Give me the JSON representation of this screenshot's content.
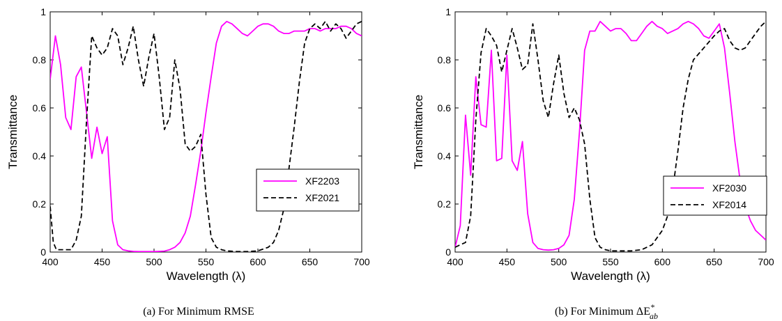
{
  "chart_data": [
    {
      "type": "line",
      "caption_prefix": "(a)  For Minimum RMSE",
      "caption_sub": "",
      "xlabel": "Wavelength (λ)",
      "ylabel": "Transmittance",
      "xlim": [
        400,
        700
      ],
      "ylim": [
        0,
        1
      ],
      "xticks": [
        400,
        450,
        500,
        550,
        600,
        650,
        700
      ],
      "yticks": [
        0,
        0.2,
        0.4,
        0.6,
        0.8,
        1
      ],
      "ytick_labels": [
        "0",
        "0.2",
        "0.4",
        "0.6",
        "0.8",
        "1"
      ],
      "legend_position": "center-right",
      "series": [
        {
          "name": "XF2203",
          "color": "#ff00ff",
          "dash": "solid",
          "x": [
            400,
            405,
            410,
            415,
            420,
            425,
            430,
            435,
            440,
            445,
            450,
            455,
            460,
            465,
            470,
            475,
            480,
            485,
            490,
            495,
            500,
            505,
            510,
            515,
            520,
            525,
            530,
            535,
            540,
            545,
            550,
            555,
            560,
            565,
            570,
            575,
            580,
            585,
            590,
            595,
            600,
            605,
            610,
            615,
            620,
            625,
            630,
            635,
            640,
            645,
            650,
            655,
            660,
            665,
            670,
            675,
            680,
            685,
            690,
            695,
            700
          ],
          "y": [
            0.72,
            0.9,
            0.78,
            0.56,
            0.51,
            0.73,
            0.77,
            0.58,
            0.39,
            0.52,
            0.41,
            0.48,
            0.13,
            0.03,
            0.01,
            0.005,
            0.003,
            0.002,
            0.002,
            0.002,
            0.002,
            0.003,
            0.004,
            0.01,
            0.02,
            0.04,
            0.08,
            0.15,
            0.28,
            0.42,
            0.58,
            0.73,
            0.87,
            0.94,
            0.96,
            0.95,
            0.93,
            0.91,
            0.9,
            0.92,
            0.94,
            0.95,
            0.95,
            0.94,
            0.92,
            0.91,
            0.91,
            0.92,
            0.92,
            0.92,
            0.93,
            0.93,
            0.92,
            0.93,
            0.93,
            0.93,
            0.94,
            0.94,
            0.93,
            0.91,
            0.9
          ]
        },
        {
          "name": "XF2021",
          "color": "#000000",
          "dash": "dashed",
          "x": [
            400,
            403,
            406,
            410,
            415,
            420,
            425,
            430,
            435,
            440,
            445,
            450,
            455,
            460,
            465,
            470,
            475,
            480,
            485,
            490,
            495,
            500,
            505,
            510,
            515,
            520,
            525,
            530,
            535,
            540,
            545,
            550,
            555,
            560,
            565,
            570,
            580,
            590,
            600,
            610,
            615,
            620,
            625,
            630,
            635,
            640,
            645,
            650,
            655,
            660,
            665,
            670,
            675,
            680,
            685,
            690,
            695,
            700
          ],
          "y": [
            0.19,
            0.04,
            0.01,
            0.01,
            0.01,
            0.01,
            0.05,
            0.15,
            0.55,
            0.9,
            0.85,
            0.82,
            0.85,
            0.93,
            0.9,
            0.78,
            0.85,
            0.94,
            0.8,
            0.69,
            0.81,
            0.91,
            0.73,
            0.51,
            0.56,
            0.8,
            0.68,
            0.45,
            0.42,
            0.44,
            0.49,
            0.24,
            0.06,
            0.02,
            0.01,
            0.005,
            0.002,
            0.002,
            0.005,
            0.02,
            0.04,
            0.09,
            0.18,
            0.35,
            0.52,
            0.71,
            0.87,
            0.93,
            0.95,
            0.93,
            0.96,
            0.92,
            0.95,
            0.93,
            0.89,
            0.92,
            0.95,
            0.96
          ]
        }
      ]
    },
    {
      "type": "line",
      "caption_prefix": "(b)  For Minimum ΔE",
      "caption_sub": "ab",
      "caption_sup": "*",
      "xlabel": "Wavelength (λ)",
      "ylabel": "Transmittance",
      "xlim": [
        400,
        700
      ],
      "ylim": [
        0,
        1
      ],
      "xticks": [
        400,
        450,
        500,
        550,
        600,
        650,
        700
      ],
      "yticks": [
        0,
        0.2,
        0.4,
        0.6,
        0.8,
        1
      ],
      "ytick_labels": [
        "0",
        "0.2",
        "0.4",
        "0.6",
        "0.8",
        "1"
      ],
      "legend_position": "center-right",
      "series": [
        {
          "name": "XF2030",
          "color": "#ff00ff",
          "dash": "solid",
          "x": [
            400,
            405,
            410,
            415,
            420,
            425,
            430,
            435,
            440,
            445,
            450,
            455,
            460,
            465,
            470,
            475,
            480,
            485,
            490,
            495,
            500,
            505,
            510,
            515,
            520,
            525,
            530,
            535,
            540,
            545,
            550,
            555,
            560,
            565,
            570,
            575,
            580,
            585,
            590,
            595,
            600,
            605,
            610,
            615,
            620,
            625,
            630,
            635,
            640,
            645,
            650,
            655,
            660,
            665,
            670,
            675,
            680,
            685,
            690,
            695,
            700
          ],
          "y": [
            0.02,
            0.11,
            0.57,
            0.32,
            0.73,
            0.53,
            0.52,
            0.84,
            0.38,
            0.39,
            0.82,
            0.38,
            0.34,
            0.46,
            0.16,
            0.04,
            0.015,
            0.01,
            0.008,
            0.01,
            0.015,
            0.03,
            0.07,
            0.22,
            0.5,
            0.84,
            0.92,
            0.92,
            0.96,
            0.94,
            0.92,
            0.93,
            0.93,
            0.91,
            0.88,
            0.88,
            0.91,
            0.94,
            0.96,
            0.94,
            0.93,
            0.91,
            0.92,
            0.93,
            0.95,
            0.96,
            0.95,
            0.93,
            0.9,
            0.89,
            0.92,
            0.95,
            0.85,
            0.66,
            0.46,
            0.3,
            0.19,
            0.13,
            0.09,
            0.07,
            0.05
          ]
        },
        {
          "name": "XF2014",
          "color": "#000000",
          "dash": "dashed",
          "x": [
            400,
            405,
            410,
            415,
            420,
            425,
            430,
            435,
            440,
            445,
            450,
            455,
            460,
            465,
            470,
            475,
            480,
            485,
            490,
            495,
            500,
            505,
            510,
            515,
            520,
            525,
            530,
            535,
            540,
            545,
            550,
            560,
            570,
            580,
            590,
            600,
            605,
            610,
            615,
            620,
            625,
            630,
            640,
            650,
            655,
            660,
            665,
            670,
            675,
            680,
            685,
            690,
            695,
            700
          ],
          "y": [
            0.02,
            0.03,
            0.04,
            0.15,
            0.55,
            0.83,
            0.93,
            0.9,
            0.86,
            0.75,
            0.84,
            0.93,
            0.85,
            0.76,
            0.78,
            0.95,
            0.8,
            0.63,
            0.56,
            0.7,
            0.82,
            0.66,
            0.56,
            0.6,
            0.55,
            0.45,
            0.22,
            0.06,
            0.02,
            0.01,
            0.005,
            0.005,
            0.005,
            0.01,
            0.03,
            0.09,
            0.15,
            0.26,
            0.42,
            0.6,
            0.72,
            0.8,
            0.85,
            0.9,
            0.92,
            0.93,
            0.88,
            0.85,
            0.84,
            0.85,
            0.88,
            0.91,
            0.94,
            0.96
          ]
        }
      ]
    }
  ]
}
